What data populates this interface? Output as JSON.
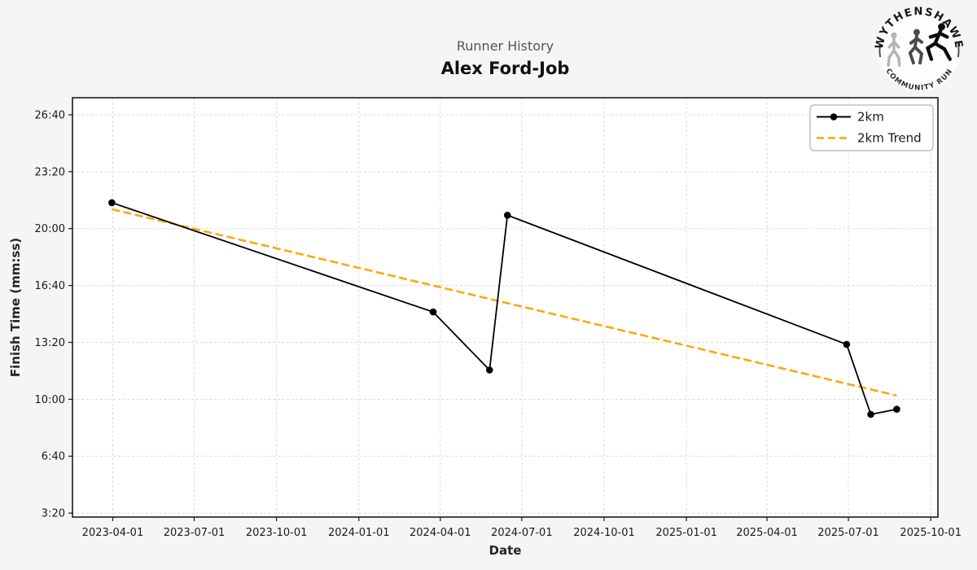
{
  "header": {
    "subtitle": "Runner History",
    "title": "Alex Ford-Job"
  },
  "logo": {
    "arc_top": "WYTHENSHAWE",
    "arc_bottom": "COMMUNITY RUN"
  },
  "chart_data": {
    "type": "line",
    "title": "Runner History",
    "runner_name": "Alex Ford-Job",
    "xlabel": "Date",
    "ylabel": "Finish Time (mm:ss)",
    "grid": true,
    "x_domain": [
      "2023-02-15",
      "2025-10-09"
    ],
    "y_domain_seconds": [
      186,
      1660
    ],
    "x_ticks": [
      "2023-04-01",
      "2023-07-01",
      "2023-10-01",
      "2024-01-01",
      "2024-04-01",
      "2024-07-01",
      "2024-10-01",
      "2025-01-01",
      "2025-04-01",
      "2025-07-01",
      "2025-10-01"
    ],
    "y_ticks_seconds": [
      200,
      400,
      600,
      800,
      1000,
      1200,
      1400,
      1600
    ],
    "y_tick_labels": [
      "3:20",
      "6:40",
      "10:00",
      "13:20",
      "16:40",
      "20:00",
      "23:20",
      "26:40"
    ],
    "colors": {
      "series": "#000000",
      "trend": "#FFA500",
      "grid": "#d9d9d9",
      "plot_bg": "#ffffff",
      "fig_bg": "#f5f5f5",
      "frame": "#1a1a1a",
      "tick_text": "#1a1a1a",
      "label_text": "#262626"
    },
    "legend": {
      "position": "top-right",
      "entries": [
        {
          "label": "2km",
          "color": "#000000",
          "style": "solid-marker"
        },
        {
          "label": "2km Trend",
          "color": "#FFA500",
          "style": "dashed"
        }
      ]
    },
    "series": [
      {
        "name": "2km",
        "color": "#000000",
        "points": [
          {
            "date": "2023-03-31",
            "time": "21:31",
            "seconds": 1291
          },
          {
            "date": "2024-03-24",
            "time": "15:07",
            "seconds": 907
          },
          {
            "date": "2024-05-26",
            "time": "11:43",
            "seconds": 703
          },
          {
            "date": "2024-06-15",
            "time": "20:47",
            "seconds": 1247
          },
          {
            "date": "2025-06-29",
            "time": "13:13",
            "seconds": 793
          },
          {
            "date": "2025-07-26",
            "time": "9:07",
            "seconds": 547
          },
          {
            "date": "2025-08-24",
            "time": "9:25",
            "seconds": 565
          }
        ]
      }
    ],
    "trend": {
      "name": "2km Trend",
      "color": "#FFA500",
      "start": {
        "date": "2023-03-31",
        "time": "21:08",
        "seconds": 1268
      },
      "end": {
        "date": "2025-08-24",
        "time": "10:13",
        "seconds": 613
      }
    }
  }
}
